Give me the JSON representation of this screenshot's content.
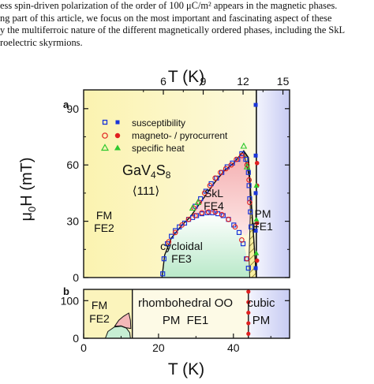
{
  "caption_lines": [
    "ess spin-driven polarization of the order of 100 μC/m² appears in the magnetic phases.",
    "ng part of this article, we focus on the most important and fascinating aspect of these",
    "y the multiferroic nature of the different magnetically ordered phases, including the SkL",
    "roelectric skyrmions."
  ],
  "colors": {
    "yellow": "#fbf4b8",
    "green": "#c9efd6",
    "red": "#f7c6c4",
    "blue": "#d6d9f6",
    "sus": "#1a35d8",
    "mp": "#e02020",
    "sh": "#2ec82e",
    "hatch": "#8a7a20"
  },
  "chart_data": [
    {
      "panel": "a",
      "type": "scatter",
      "x_axis_label": "T (K)",
      "x_ticks": [
        6,
        9,
        12,
        15
      ],
      "x_range": [
        0,
        15.5
      ],
      "y_label_main": "μ",
      "y_label_sub": "0",
      "y_label_rest": "H (mT)",
      "y_ticks": [
        0,
        30,
        60,
        90
      ],
      "y_range": [
        0,
        100
      ],
      "material_main": "GaV",
      "material_sub1": "4",
      "material_mid": "S",
      "material_sub2": "8",
      "direction": "⟨111⟩",
      "phase_labels": {
        "fm": "FM",
        "fe2": "FE2",
        "skl": "SkL",
        "fe4": "FE4",
        "cycloidal": "cycloidal",
        "fe3": "FE3",
        "pm": "PM",
        "fe1": "FE1"
      },
      "legend": [
        {
          "name": "susceptibility",
          "marker": "square"
        },
        {
          "name": "magneto- / pyrocurrent",
          "marker": "circle"
        },
        {
          "name": "specific heat",
          "marker": "triangle"
        }
      ],
      "susceptibility": [
        [
          5.95,
          2
        ],
        [
          6.05,
          10
        ],
        [
          6.3,
          18
        ],
        [
          6.6,
          22
        ],
        [
          6.9,
          25
        ],
        [
          7.2,
          27
        ],
        [
          7.6,
          29
        ],
        [
          7.9,
          31
        ],
        [
          8.2,
          32
        ],
        [
          8.5,
          33
        ],
        [
          8.9,
          34
        ],
        [
          9.3,
          34.5
        ],
        [
          9.7,
          34.5
        ],
        [
          10.1,
          34
        ],
        [
          10.5,
          33
        ],
        [
          10.9,
          31
        ],
        [
          11.3,
          28
        ],
        [
          11.7,
          24
        ],
        [
          12.0,
          18
        ],
        [
          12.25,
          10
        ],
        [
          12.4,
          5
        ],
        [
          8.4,
          38
        ],
        [
          8.8,
          42
        ],
        [
          9.2,
          46
        ],
        [
          9.6,
          50
        ],
        [
          10.0,
          53
        ],
        [
          10.4,
          56
        ],
        [
          10.8,
          59
        ],
        [
          11.2,
          61
        ],
        [
          11.6,
          63
        ],
        [
          11.9,
          66
        ],
        [
          12.2,
          63
        ],
        [
          12.4,
          56
        ],
        [
          12.45,
          49
        ],
        [
          12.5,
          42
        ],
        [
          12.55,
          35
        ],
        [
          12.6,
          27
        ]
      ],
      "susceptibility_pm": [
        [
          12.95,
          5
        ],
        [
          12.95,
          25
        ],
        [
          12.95,
          45
        ],
        [
          12.95,
          65
        ],
        [
          12.95,
          92
        ]
      ],
      "pyrocurrent": [
        [
          6.4,
          19
        ],
        [
          6.9,
          24
        ],
        [
          7.4,
          28
        ],
        [
          7.9,
          31
        ],
        [
          8.4,
          33
        ],
        [
          8.9,
          34.5
        ],
        [
          9.4,
          35
        ],
        [
          9.9,
          35
        ],
        [
          10.4,
          33.5
        ],
        [
          10.9,
          31
        ],
        [
          11.4,
          27
        ],
        [
          11.9,
          20
        ],
        [
          12.3,
          10
        ],
        [
          8.3,
          37
        ],
        [
          8.7,
          40
        ],
        [
          9.1,
          45
        ],
        [
          9.5,
          49
        ],
        [
          9.9,
          53
        ],
        [
          10.3,
          56
        ],
        [
          10.7,
          58
        ],
        [
          11.1,
          60
        ],
        [
          11.5,
          63
        ],
        [
          11.9,
          65
        ],
        [
          12.3,
          60
        ],
        [
          12.45,
          52
        ],
        [
          12.5,
          40
        ]
      ],
      "pyrocurrent_pm": [
        [
          13.05,
          9
        ],
        [
          13.05,
          29
        ],
        [
          13.05,
          49
        ],
        [
          13.05,
          61
        ]
      ],
      "specific_heat": [
        [
          8.2,
          37
        ],
        [
          8.6,
          40
        ],
        [
          12.05,
          70
        ],
        [
          12.3,
          59
        ]
      ],
      "specific_heat_pm": [
        [
          13.0,
          13
        ],
        [
          13.0,
          31
        ],
        [
          13.0,
          49
        ]
      ]
    },
    {
      "panel": "b",
      "type": "area",
      "x_axis_label": "T (K)",
      "x_ticks": [
        0,
        20,
        40
      ],
      "x_range": [
        0,
        55
      ],
      "y_ticks": [
        0,
        100
      ],
      "y_range": [
        0,
        130
      ],
      "phase_labels": {
        "fm": "FM",
        "fe2": "FE2",
        "rhombo": "rhombohedral OO",
        "pmfe1": "PM  FE1",
        "cubic": "cubic",
        "pm": "PM"
      },
      "points_red": [
        [
          44,
          12
        ],
        [
          44,
          40
        ],
        [
          44,
          68
        ],
        [
          44,
          96
        ],
        [
          44,
          124
        ]
      ]
    }
  ]
}
